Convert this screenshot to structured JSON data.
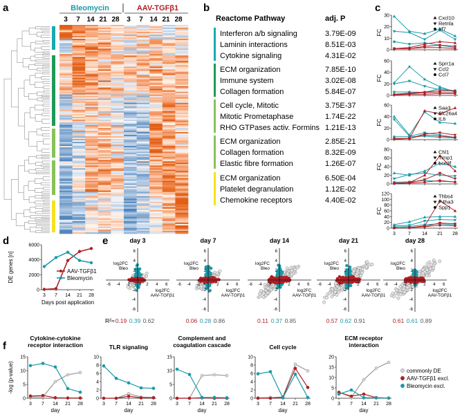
{
  "colors": {
    "bleo": "#1a9aa8",
    "aav": "#b01e24",
    "common": "#9a9a9a",
    "teal_bar": "#1aa9b3",
    "green_bar": "#1e9a57",
    "lgreen_bar": "#88c25a",
    "yellow_bar": "#f5e21e"
  },
  "panel_labels": {
    "a": "a",
    "b": "b",
    "c": "c",
    "d": "d",
    "e": "e",
    "f": "f"
  },
  "panel_a": {
    "group1": "Bleomycin",
    "group2": "AAV-TGFβ1",
    "days": [
      "3",
      "7",
      "14",
      "21",
      "28",
      "3",
      "7",
      "14",
      "21",
      "28"
    ]
  },
  "panel_b": {
    "col1": "Reactome Pathway",
    "col2": "adj. P",
    "groups": [
      {
        "color": "teal_bar",
        "items": [
          {
            "name": "Interferon a/b signaling",
            "p": "3.79E-09"
          },
          {
            "name": "Laminin interactions",
            "p": "8.51E-03"
          },
          {
            "name": "Cytokine signaling",
            "p": "4.31E-02"
          }
        ]
      },
      {
        "color": "green_bar",
        "items": [
          {
            "name": "ECM organization",
            "p": "7.85E-10"
          },
          {
            "name": "Immune system",
            "p": "3.02E-08"
          },
          {
            "name": "Collagen formation",
            "p": "5.84E-07"
          }
        ]
      },
      {
        "color": "lgreen_bar",
        "items": [
          {
            "name": "Cell cycle, Mitotic",
            "p": "3.75E-37"
          },
          {
            "name": "Mitotic Prometaphase",
            "p": "1.74E-22"
          },
          {
            "name": "RHO GTPases activ. Formins",
            "p": "1.21E-13"
          }
        ]
      },
      {
        "color": "lgreen_bar",
        "items": [
          {
            "name": "ECM organization",
            "p": "2.85E-21"
          },
          {
            "name": "Collagen formation",
            "p": "8.32E-09"
          },
          {
            "name": "Elastic fibre formation",
            "p": "1.26E-07"
          }
        ]
      },
      {
        "color": "yellow_bar",
        "items": [
          {
            "name": "ECM organization",
            "p": "6.50E-04"
          },
          {
            "name": "Platelet degranulation",
            "p": "1.12E-02"
          },
          {
            "name": "Chemokine receptors",
            "p": "4.40E-02"
          }
        ]
      }
    ]
  },
  "chart_data": [
    {
      "id": "c",
      "type": "line",
      "ylabel": "FC",
      "x": [
        3,
        7,
        14,
        21,
        28
      ],
      "subplots": [
        {
          "ylim": [
            0,
            30
          ],
          "yticks": [
            0,
            10,
            20,
            30
          ],
          "legend": [
            "Cxcl10",
            "Retnla",
            "Irf7"
          ],
          "bleo": [
            [
              29,
              16,
              14,
              18,
              12
            ],
            [
              16,
              15,
              9,
              17,
              9
            ],
            [
              7,
              5,
              6,
              4,
              2
            ]
          ],
          "aav": [
            [
              1,
              2,
              5,
              7,
              6
            ],
            [
              1,
              1,
              3,
              4,
              3
            ],
            [
              1,
              1,
              2,
              2,
              1
            ]
          ]
        },
        {
          "ylim": [
            0,
            60
          ],
          "yticks": [
            0,
            20,
            40,
            60
          ],
          "legend": [
            "Sprr1a",
            "Ccl2",
            "Ccl7"
          ],
          "bleo": [
            [
              22,
              50,
              28,
              15,
              6
            ],
            [
              20,
              25,
              16,
              10,
              8
            ],
            [
              6,
              6,
              5,
              12,
              8
            ]
          ],
          "aav": [
            [
              2,
              4,
              6,
              8,
              8
            ],
            [
              1,
              3,
              5,
              5,
              5
            ],
            [
              1,
              2,
              2,
              3,
              3
            ]
          ]
        },
        {
          "ylim": [
            0,
            60
          ],
          "yticks": [
            0,
            20,
            40,
            60
          ],
          "legend": [
            "Saa3",
            "Slc26a4",
            "IL6"
          ],
          "bleo": [
            [
              40,
              8,
              48,
              30,
              28
            ],
            [
              35,
              6,
              12,
              8,
              4
            ],
            [
              5,
              5,
              6,
              4,
              3
            ]
          ],
          "aav": [
            [
              2,
              2,
              50,
              45,
              55
            ],
            [
              1,
              2,
              10,
              12,
              8
            ],
            [
              1,
              2,
              8,
              6,
              4
            ]
          ]
        },
        {
          "ylim": [
            0,
            80
          ],
          "yticks": [
            0,
            20,
            40,
            60,
            80
          ],
          "legend": [
            "Chl1",
            "Timp1",
            "Lce3f"
          ],
          "bleo": [
            [
              25,
              20,
              30,
              48,
              40
            ],
            [
              12,
              22,
              25,
              20,
              18
            ],
            [
              4,
              5,
              8,
              6,
              5
            ]
          ],
          "aav": [
            [
              2,
              3,
              20,
              65,
              30
            ],
            [
              1,
              3,
              10,
              25,
              12
            ],
            [
              1,
              2,
              4,
              8,
              4
            ]
          ]
        },
        {
          "ylim": [
            0,
            120
          ],
          "yticks": [
            0,
            20,
            40,
            60,
            80,
            100,
            120
          ],
          "legend": [
            "Thbs4",
            "P4ha3",
            "Spp1"
          ],
          "bleo": [
            [
              12,
              22,
              38,
              40,
              40
            ],
            [
              8,
              10,
              25,
              30,
              28
            ],
            [
              4,
              6,
              12,
              15,
              12
            ]
          ],
          "aav": [
            [
              1,
              2,
              8,
              95,
              60
            ],
            [
              1,
              2,
              6,
              18,
              15
            ],
            [
              1,
              2,
              5,
              10,
              8
            ]
          ]
        }
      ]
    },
    {
      "id": "d",
      "type": "line",
      "ylabel": "DE genes [n]",
      "xlabel": "Days post application",
      "x": [
        3,
        7,
        14,
        21,
        28
      ],
      "ylim": [
        0,
        6000
      ],
      "yticks": [
        0,
        2000,
        4000,
        6000
      ],
      "series": [
        {
          "name": "AAV-TGFβ1",
          "values": [
            50,
            150,
            3900,
            5100,
            5500
          ]
        },
        {
          "name": "Bleomycin",
          "values": [
            3100,
            4300,
            5000,
            3900,
            3600
          ]
        }
      ]
    },
    {
      "id": "e",
      "type": "scatter",
      "xlabel": "log2FC AAV-TGFβ1",
      "ylabel": "log2FC Bleo",
      "panels": [
        {
          "title": "day 3",
          "r2": [
            "0.19",
            "0.39",
            "0.62"
          ],
          "spread": [
            0.6,
            0.8,
            0.3
          ]
        },
        {
          "title": "day 7",
          "r2": [
            "0.06",
            "0.28",
            "0.86"
          ],
          "spread": [
            0.7,
            0.8,
            0.5
          ]
        },
        {
          "title": "day 14",
          "r2": [
            "0.11",
            "0.37",
            "0.85"
          ],
          "spread": [
            0.9,
            0.8,
            0.9
          ]
        },
        {
          "title": "day 21",
          "r2": [
            "0.57",
            "0.62",
            "0.91"
          ],
          "spread": [
            0.9,
            0.8,
            1.0
          ]
        },
        {
          "title": "day 28",
          "r2": [
            "0.61",
            "0.61",
            "0.89"
          ],
          "spread": [
            0.8,
            0.6,
            1.0
          ]
        }
      ],
      "r2_label": "R²≈",
      "tick_pos": [
        "2",
        "4",
        "6"
      ],
      "tick_neg": [
        "-2",
        "-4",
        "-6"
      ]
    },
    {
      "id": "f",
      "type": "line",
      "ylabel": "-log (p-value)",
      "xlabel": "day",
      "x": [
        3,
        7,
        14,
        21,
        28
      ],
      "legend": [
        "commonly DE",
        "AAV-TGFβ1 excl.",
        "Bleomycin excl."
      ],
      "panels": [
        {
          "title": [
            "Cytokine-cytokine",
            "receptor interaction"
          ],
          "ylim": [
            0,
            15
          ],
          "yticks": [
            0,
            5,
            10,
            15
          ],
          "common": [
            0.5,
            0.5,
            6,
            8.5,
            9.3
          ],
          "aav": [
            0.8,
            1,
            0.2,
            0.1,
            0.1
          ],
          "bleo": [
            11.8,
            12.6,
            11.3,
            3.5,
            2.2
          ]
        },
        {
          "title": [
            "TLR signaling"
          ],
          "ylim": [
            0,
            10
          ],
          "yticks": [
            0,
            2,
            4,
            6,
            8,
            10
          ],
          "common": [
            0,
            0,
            1.1,
            0.3,
            0.2
          ],
          "aav": [
            0,
            0,
            0.5,
            0.1,
            0.1
          ],
          "bleo": [
            7.8,
            4.8,
            3.7,
            2.5,
            2.4
          ]
        },
        {
          "title": [
            "Complement and",
            "coagulation cascade"
          ],
          "ylim": [
            0,
            15
          ],
          "yticks": [
            0,
            5,
            10,
            15
          ],
          "common": [
            0,
            0,
            8.2,
            8.5,
            8.2
          ],
          "aav": [
            0,
            0,
            0.2,
            0,
            0
          ],
          "bleo": [
            10.5,
            8.6,
            0.3,
            0.3,
            0.2
          ]
        },
        {
          "title": [
            "Cell cycle"
          ],
          "ylim": [
            0,
            10
          ],
          "yticks": [
            0,
            2,
            4,
            6,
            8,
            10
          ],
          "common": [
            0.1,
            0.2,
            0.3,
            8.2,
            6.6
          ],
          "aav": [
            0,
            0,
            0.2,
            7.2,
            2.6
          ],
          "bleo": [
            5.9,
            6.4,
            0.1,
            5.8,
            0.2
          ]
        },
        {
          "title": [
            "ECM receptor",
            "interaction"
          ],
          "ylim": [
            0,
            20
          ],
          "yticks": [
            0,
            5,
            10,
            15,
            20
          ],
          "common": [
            3,
            0.5,
            9,
            14.5,
            17.3
          ],
          "aav": [
            2.8,
            1,
            2,
            0.3,
            0.1
          ],
          "bleo": [
            2,
            4,
            0.3,
            0.2,
            0.1
          ]
        }
      ]
    }
  ]
}
